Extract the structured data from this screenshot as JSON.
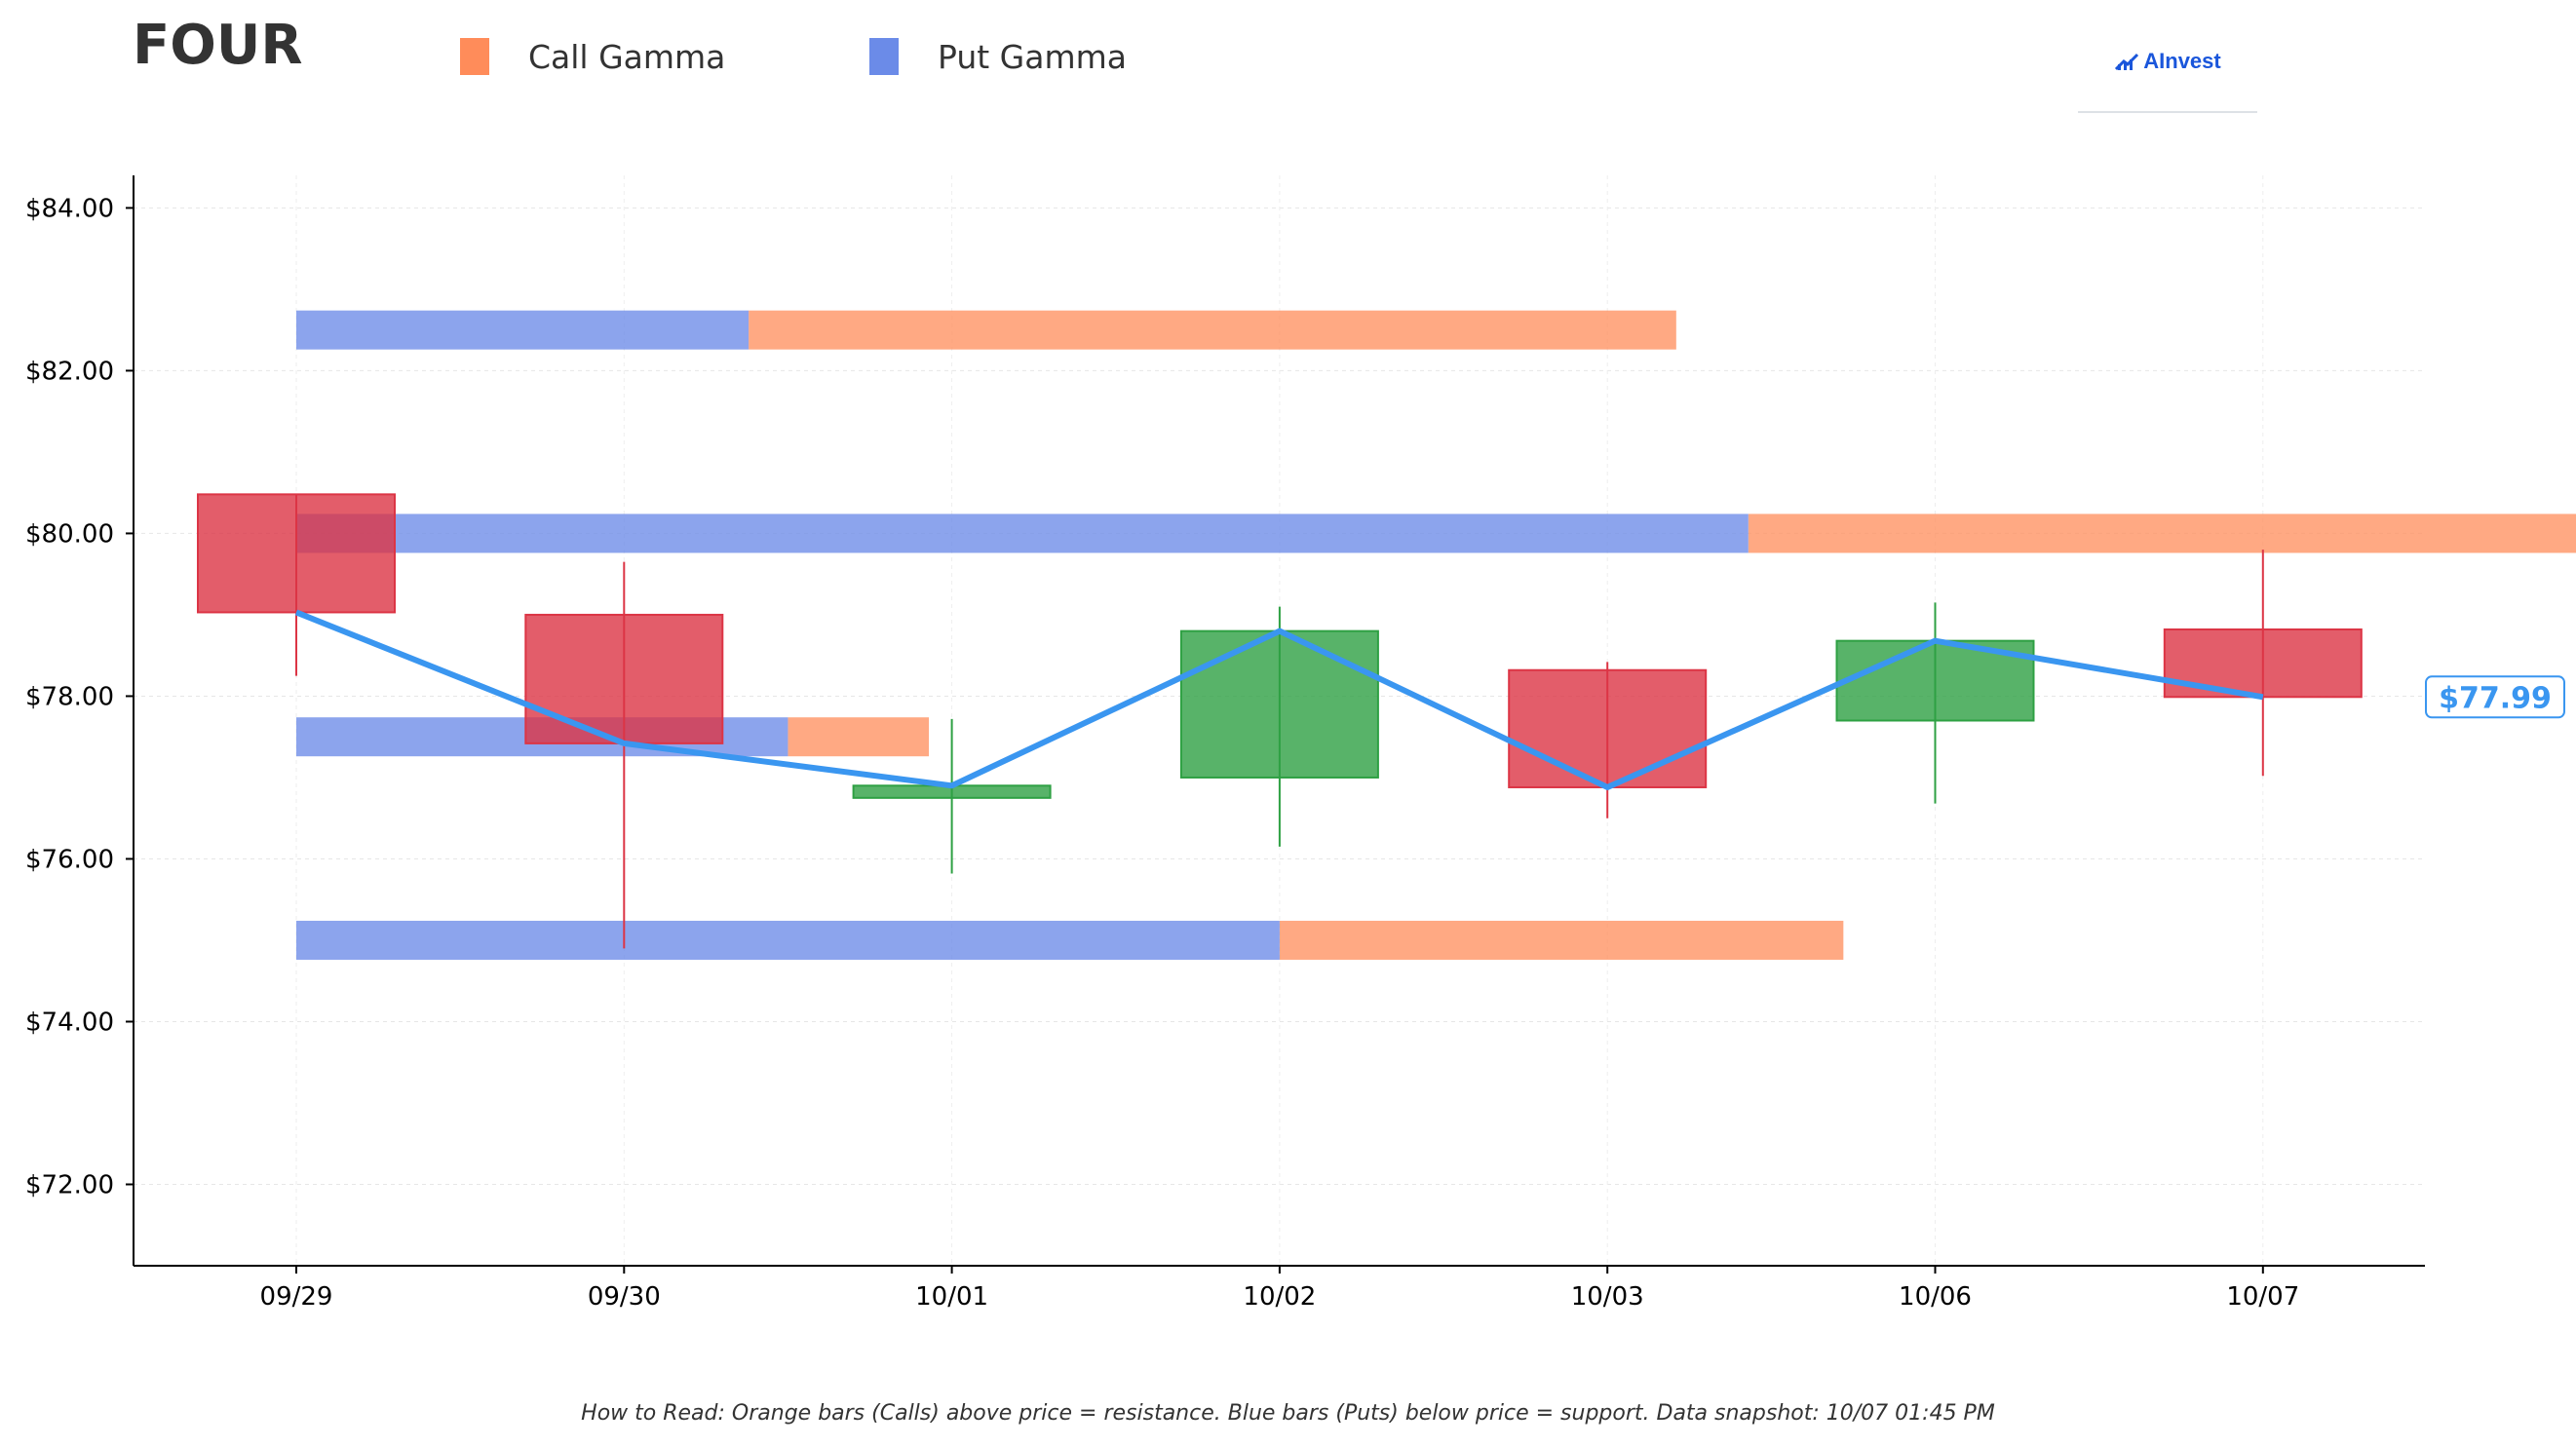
{
  "header": {
    "ticker": "FOUR",
    "logo_text": "AInvest",
    "logo_icon": "ainvest-logo-icon"
  },
  "legend": {
    "items": [
      {
        "label": "Call Gamma",
        "color": "#ff8c5a"
      },
      {
        "label": "Put Gamma",
        "color": "#6b8be8"
      }
    ]
  },
  "footnote": "How to Read: Orange bars (Calls) above price = resistance. Blue bars (Puts) below price = support. Data snapshot: 10/07 01:45 PM",
  "chart_data": {
    "type": "candlestick",
    "title": "",
    "xlabel": "",
    "ylabel": "",
    "categories": [
      "09/29",
      "09/30",
      "10/01",
      "10/02",
      "10/03",
      "10/06",
      "10/07"
    ],
    "ylim": [
      71.0,
      84.4
    ],
    "y_ticks": [
      72,
      74,
      76,
      78,
      80,
      82,
      84
    ],
    "y_tick_labels": [
      "$72.00",
      "$74.00",
      "$76.00",
      "$78.00",
      "$80.00",
      "$82.00",
      "$84.00"
    ],
    "grid": true,
    "candles": [
      {
        "date": "09/29",
        "open": 80.48,
        "high": 80.48,
        "low": 78.25,
        "close": 79.03
      },
      {
        "date": "09/30",
        "open": 79.0,
        "high": 79.65,
        "low": 74.9,
        "close": 77.42
      },
      {
        "date": "10/01",
        "open": 76.75,
        "high": 77.72,
        "low": 75.82,
        "close": 76.9
      },
      {
        "date": "10/02",
        "open": 77.0,
        "high": 79.1,
        "low": 76.15,
        "close": 78.8
      },
      {
        "date": "10/03",
        "open": 78.32,
        "high": 78.42,
        "low": 76.5,
        "close": 76.88
      },
      {
        "date": "10/06",
        "open": 77.7,
        "high": 79.15,
        "low": 76.68,
        "close": 78.68
      },
      {
        "date": "10/07",
        "open": 78.82,
        "high": 79.8,
        "low": 77.02,
        "close": 77.99
      }
    ],
    "close_line": {
      "color": "#3a96f0",
      "values": [
        79.03,
        77.42,
        76.9,
        78.8,
        76.88,
        78.68,
        77.99
      ]
    },
    "gamma_levels": [
      {
        "strike": 82.5,
        "put": 1.38,
        "call": 2.83
      },
      {
        "strike": 80.0,
        "put": 4.43,
        "call": 2.58
      },
      {
        "strike": 77.5,
        "put": 1.5,
        "call": 0.43
      },
      {
        "strike": 75.0,
        "put": 3.0,
        "call": 1.72
      }
    ],
    "last_price": 77.99,
    "last_price_label": "$77.99",
    "colors": {
      "up": "#2ea043",
      "down": "#dc3545",
      "call": "#ff8c5a",
      "put": "#6b8be8",
      "close_line": "#3a96f0"
    }
  }
}
